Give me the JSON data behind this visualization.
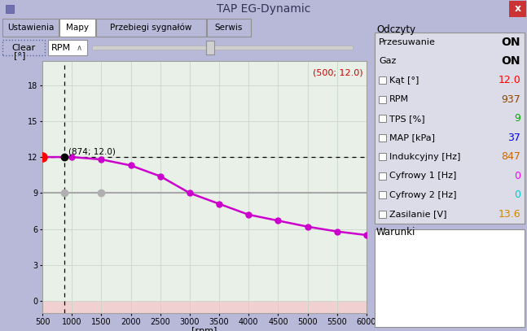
{
  "title": "TAP EG-Dynamic",
  "window_bg": "#b8b8d8",
  "plot_bg": "#e8f0e8",
  "plot_bg_negative": "#f0d0d0",
  "plot_border": "#a0a0a0",
  "grid_color": "#c8d8c8",
  "xlabel": "[rpm]",
  "ylabel": "[°]",
  "xlim": [
    500,
    6000
  ],
  "ylim_bottom": -1.0,
  "ylim_top": 20,
  "xticks": [
    500,
    1000,
    1500,
    2000,
    2500,
    3000,
    3500,
    4000,
    4500,
    5000,
    5500,
    6000
  ],
  "yticks": [
    0,
    3,
    6,
    9,
    12,
    15,
    18
  ],
  "curve_x": [
    500,
    1000,
    1500,
    2000,
    2500,
    3000,
    3500,
    4000,
    4500,
    5000,
    5500,
    6000
  ],
  "curve_y": [
    12.0,
    12.0,
    11.8,
    11.3,
    10.4,
    9.0,
    8.1,
    7.2,
    6.7,
    6.2,
    5.8,
    5.5
  ],
  "curve_color": "#cc00cc",
  "curve_lw": 1.8,
  "marker_size": 5,
  "dashed_line_y": 12.0,
  "vline_x": 874,
  "hline_y": 9.0,
  "hline_color": "#a8a8a8",
  "red_dot_x": 500,
  "red_dot_y": 12.0,
  "black_dot_x": 874,
  "black_dot_y": 12.0,
  "gray_dot1_x": 874,
  "gray_dot1_y": 9.0,
  "gray_dot2_x": 1500,
  "gray_dot2_y": 9.0,
  "annotation_874": "(874; 12.0)",
  "annotation_500": "(500; 12.0)",
  "annotation_500_color": "#cc0000",
  "tab_labels": [
    "Ustawienia",
    "Mapy",
    "Przebiegi sygnałów",
    "Serwis"
  ],
  "active_tab": "Mapy",
  "odczyty_label": "Odczyty",
  "przesuwanie_label": "Przesuwanie",
  "przesuwanie_val": "ON",
  "gaz_label": "Gaz",
  "gaz_val": "ON",
  "kat_label": "Kąt [°]",
  "kat_val": "12.0",
  "kat_val_color": "#ff0000",
  "rpm_read_label": "RPM",
  "rpm_read_val": "937",
  "rpm_read_color": "#8b4500",
  "tps_label": "TPS [%]",
  "tps_val": "9",
  "tps_color": "#00aa00",
  "map_label": "MAP [kPa]",
  "map_val": "37",
  "map_color": "#0000ee",
  "induk_label": "Indukcyjny [Hz]",
  "induk_val": "847",
  "induk_color": "#cc6600",
  "cyf1_label": "Cyfrowy 1 [Hz]",
  "cyf1_val": "0",
  "cyf1_color": "#ff00ff",
  "cyf2_label": "Cyfrowy 2 [Hz]",
  "cyf2_val": "0",
  "cyf2_color": "#00cccc",
  "zasil_label": "Zasilanie [V]",
  "zasil_val": "13.6",
  "zasil_color": "#cc8800",
  "warunki_label": "Warunki"
}
